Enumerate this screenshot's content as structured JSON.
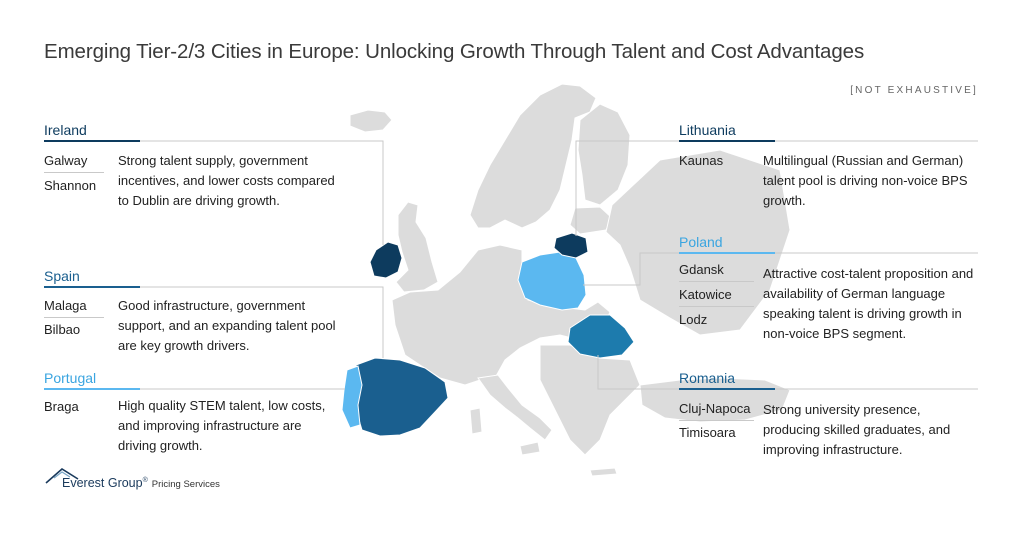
{
  "title": "Emerging Tier-2/3 Cities in Europe: Unlocking Growth Through Talent and Cost Advantages",
  "note": "[NOT EXHAUSTIVE]",
  "colors": {
    "dark_navy": "#0d3b5e",
    "medium_blue": "#1a5f8f",
    "steel_blue": "#1d7bad",
    "light_blue": "#5bb8f0",
    "map_gray": "#dcdcdc"
  },
  "regions": {
    "ireland": {
      "name": "Ireland",
      "cities": [
        "Galway",
        "Shannon"
      ],
      "description": "Strong talent supply, government incentives, and lower costs compared to Dublin are driving growth."
    },
    "spain": {
      "name": "Spain",
      "cities": [
        "Malaga",
        "Bilbao"
      ],
      "description": "Good infrastructure, government support, and an expanding talent pool are key growth drivers."
    },
    "portugal": {
      "name": "Portugal",
      "cities": [
        "Braga"
      ],
      "description": "High quality STEM talent, low costs, and improving infrastructure are driving growth."
    },
    "lithuania": {
      "name": "Lithuania",
      "cities": [
        "Kaunas"
      ],
      "description": "Multilingual (Russian and German) talent pool is driving non-voice BPS growth."
    },
    "poland": {
      "name": "Poland",
      "cities": [
        "Gdansk",
        "Katowice",
        "Lodz"
      ],
      "description": "Attractive cost-talent proposition and  availability of German language speaking talent is driving growth in non-voice BPS segment."
    },
    "romania": {
      "name": "Romania",
      "cities": [
        "Cluj-Napoca",
        "Timisoara"
      ],
      "description": "Strong university presence, producing skilled graduates, and improving infrastructure."
    }
  },
  "logo": {
    "name": "Everest Group",
    "registered": "®",
    "sub": "Pricing Services"
  },
  "icons": {
    "logo_mark": "mountain-icon"
  }
}
